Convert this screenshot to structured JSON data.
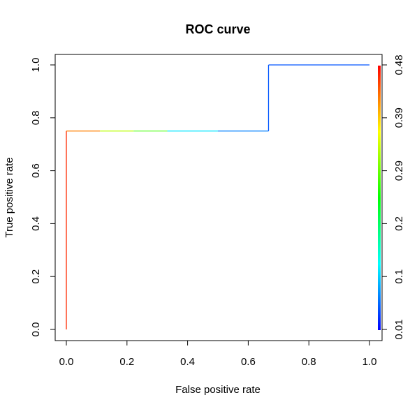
{
  "chart_data": {
    "type": "line",
    "title": "ROC curve",
    "xlabel": "False positive rate",
    "ylabel": "True positive rate",
    "xlim": [
      0,
      1
    ],
    "ylim": [
      0,
      1
    ],
    "x_ticks": [
      "0.0",
      "0.2",
      "0.4",
      "0.6",
      "0.8",
      "1.0"
    ],
    "y_ticks": [
      "0.0",
      "0.2",
      "0.4",
      "0.6",
      "0.8",
      "1.0"
    ],
    "grid": false,
    "series": [
      {
        "points": [
          {
            "x": 0.0,
            "y": 0.0,
            "color": "#ff2a00"
          },
          {
            "x": 0.0,
            "y": 0.75,
            "color": "#ff2a00"
          },
          {
            "x": 0.111,
            "y": 0.75,
            "color": "#ff7f00"
          },
          {
            "x": 0.222,
            "y": 0.75,
            "color": "#b8ff00"
          },
          {
            "x": 0.333,
            "y": 0.75,
            "color": "#66ff33"
          },
          {
            "x": 0.5,
            "y": 0.75,
            "color": "#00e5ff"
          },
          {
            "x": 0.667,
            "y": 0.75,
            "color": "#0080ff"
          },
          {
            "x": 0.667,
            "y": 1.0,
            "color": "#0055ff"
          },
          {
            "x": 1.0,
            "y": 1.0,
            "color": "#0055ff"
          }
        ]
      }
    ],
    "colorbar": {
      "labels": [
        "0.01",
        "0.1",
        "0.2",
        "0.29",
        "0.39",
        "0.48"
      ],
      "colors": [
        "#0000ff",
        "#00ffff",
        "#00ff00",
        "#ffff00",
        "#ff0000"
      ]
    }
  }
}
